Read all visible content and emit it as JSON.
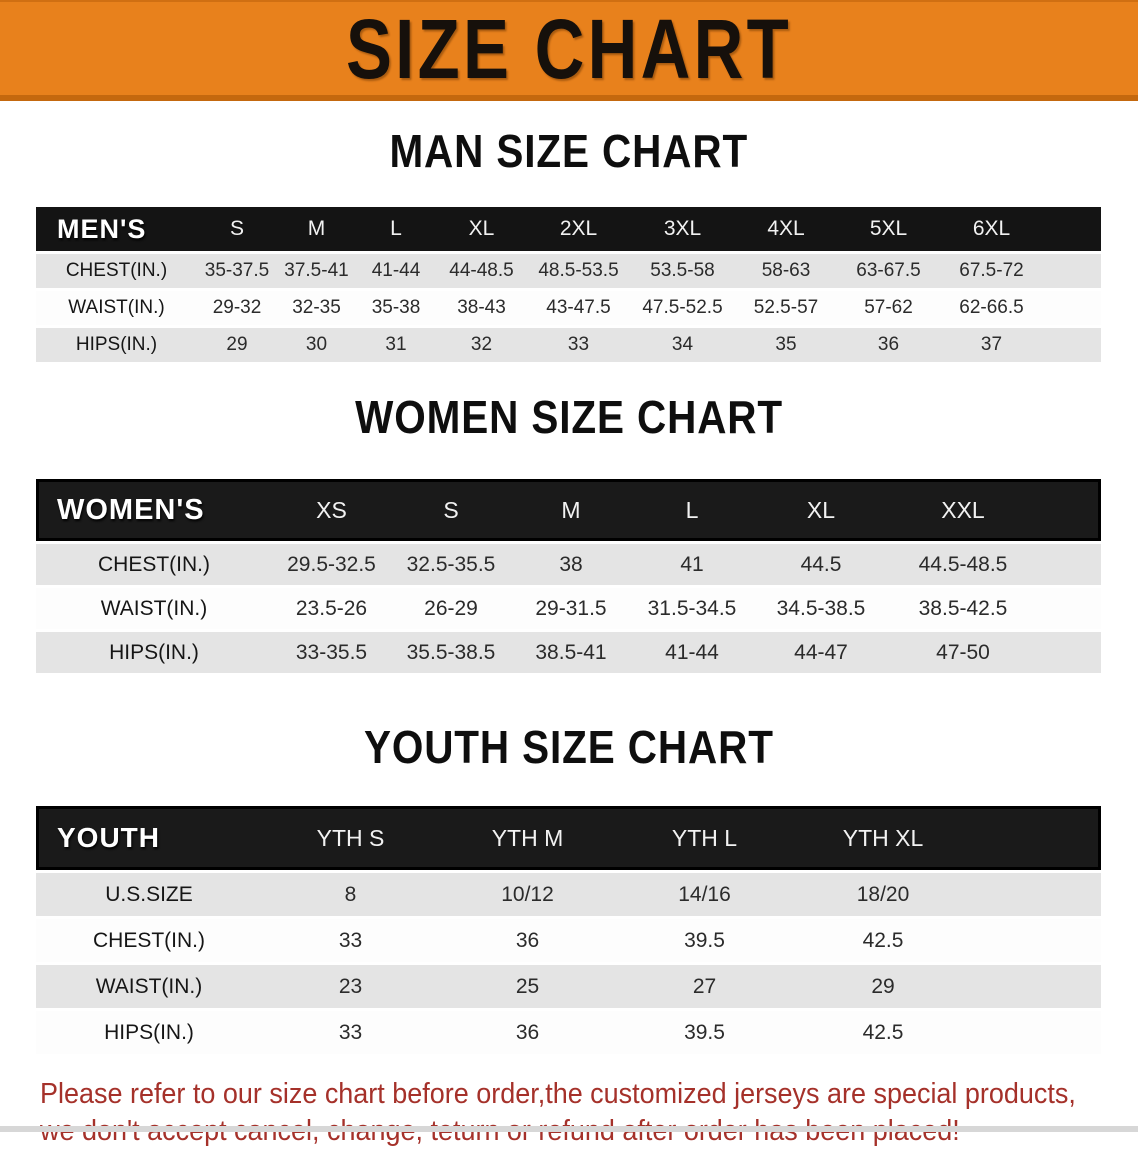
{
  "banner": {
    "title": "SIZE CHART",
    "background_color": "#E8811C",
    "text_color": "#16100B"
  },
  "sections": [
    {
      "title": "MAN SIZE CHART",
      "group_label": "MEN'S",
      "columns": [
        "S",
        "M",
        "L",
        "XL",
        "2XL",
        "3XL",
        "4XL",
        "5XL",
        "6XL"
      ],
      "rows": [
        {
          "label": "CHEST(IN.)",
          "values": [
            "35-37.5",
            "37.5-41",
            "41-44",
            "44-48.5",
            "48.5-53.5",
            "53.5-58",
            "58-63",
            "63-67.5",
            "67.5-72"
          ]
        },
        {
          "label": "WAIST(IN.)",
          "values": [
            "29-32",
            "32-35",
            "35-38",
            "38-43",
            "43-47.5",
            "47.5-52.5",
            "52.5-57",
            "57-62",
            "62-66.5"
          ]
        },
        {
          "label": "HIPS(IN.)",
          "values": [
            "29",
            "30",
            "31",
            "32",
            "33",
            "34",
            "35",
            "36",
            "37"
          ]
        }
      ]
    },
    {
      "title": "WOMEN SIZE CHART",
      "group_label": "WOMEN'S",
      "columns": [
        "XS",
        "S",
        "M",
        "L",
        "XL",
        "XXL"
      ],
      "rows": [
        {
          "label": "CHEST(IN.)",
          "values": [
            "29.5-32.5",
            "32.5-35.5",
            "38",
            "41",
            "44.5",
            "44.5-48.5"
          ]
        },
        {
          "label": "WAIST(IN.)",
          "values": [
            "23.5-26",
            "26-29",
            "29-31.5",
            "31.5-34.5",
            "34.5-38.5",
            "38.5-42.5"
          ]
        },
        {
          "label": "HIPS(IN.)",
          "values": [
            "33-35.5",
            "35.5-38.5",
            "38.5-41",
            "41-44",
            "44-47",
            "47-50"
          ]
        }
      ]
    },
    {
      "title": "YOUTH SIZE CHART",
      "group_label": "YOUTH",
      "columns": [
        "YTH S",
        "YTH M",
        "YTH L",
        "YTH XL"
      ],
      "rows": [
        {
          "label": "U.S.SIZE",
          "values": [
            "8",
            "10/12",
            "14/16",
            "18/20"
          ]
        },
        {
          "label": "CHEST(IN.)",
          "values": [
            "33",
            "36",
            "39.5",
            "42.5"
          ]
        },
        {
          "label": "WAIST(IN.)",
          "values": [
            "23",
            "25",
            "27",
            "29"
          ]
        },
        {
          "label": "HIPS(IN.)",
          "values": [
            "33",
            "36",
            "39.5",
            "42.5"
          ]
        }
      ]
    }
  ],
  "disclaimer": {
    "line1": "Please refer to our size chart before order,the customized jerseys are special products,",
    "line2": "we don't accept cancel, change, teturn or refund after order has been placed!",
    "color": "#A5312A"
  }
}
